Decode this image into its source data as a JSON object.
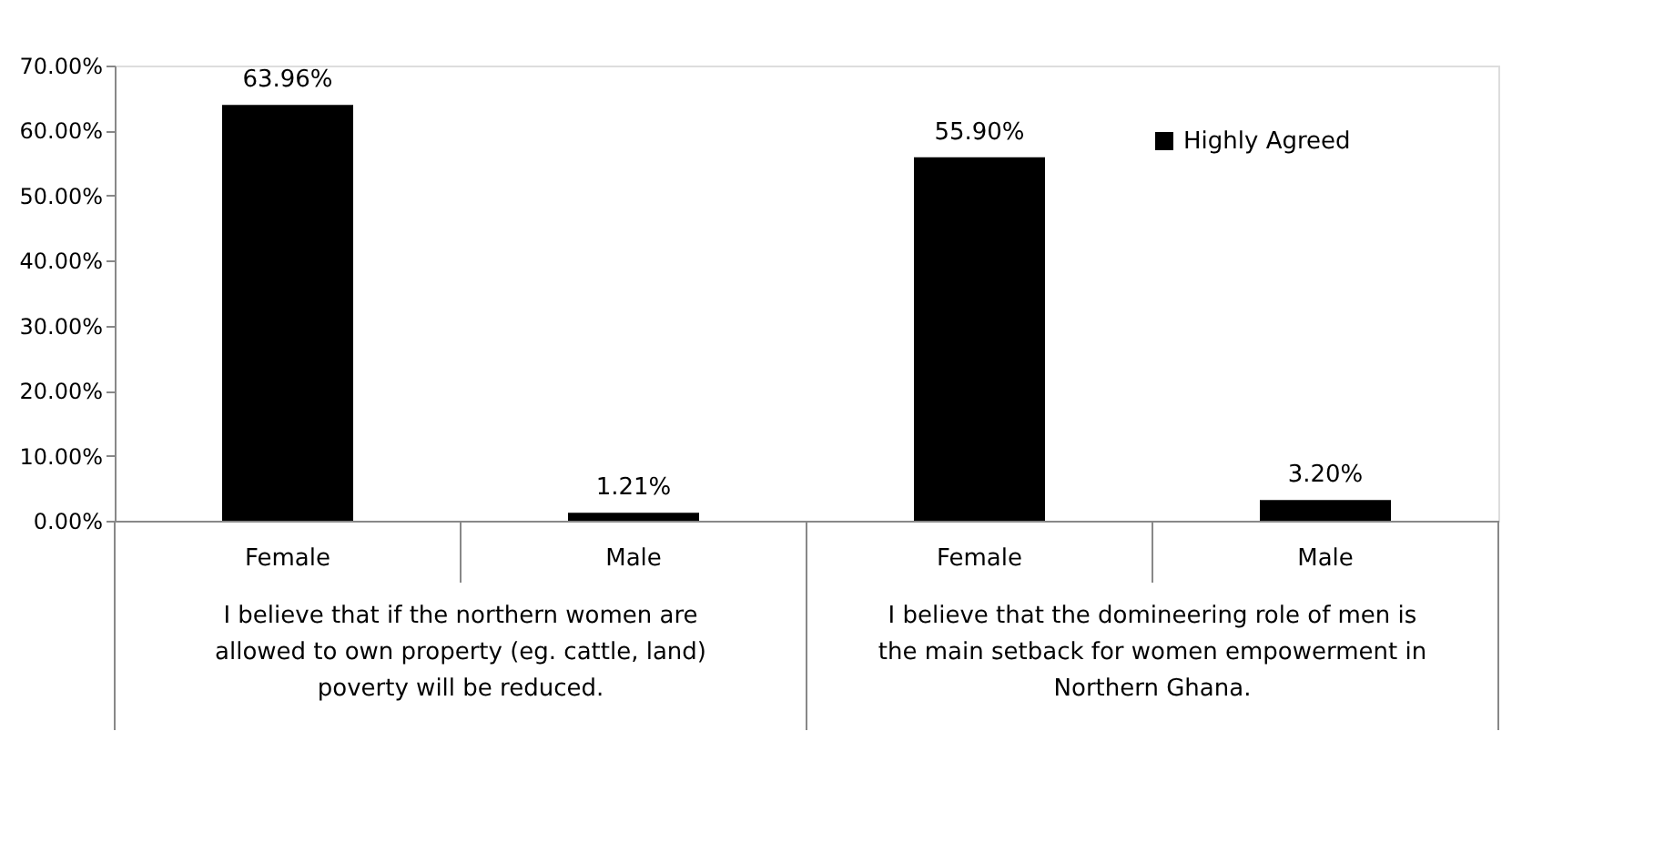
{
  "chart_data": {
    "type": "bar",
    "categories": [
      "Female",
      "Male",
      "Female",
      "Male"
    ],
    "series": [
      {
        "name": "Highly Agreed",
        "color": "#000000",
        "values": [
          63.96,
          1.21,
          55.9,
          3.2
        ],
        "value_labels": [
          "63.96%",
          "1.21%",
          "55.90%",
          "3.20%"
        ]
      }
    ],
    "ylim": [
      0,
      70
    ],
    "yticks": [
      {
        "value": 0,
        "label": "0.00%"
      },
      {
        "value": 10,
        "label": "10.00%"
      },
      {
        "value": 20,
        "label": "20.00%"
      },
      {
        "value": 30,
        "label": "30.00%"
      },
      {
        "value": 40,
        "label": "40.00%"
      },
      {
        "value": 50,
        "label": "50.00%"
      },
      {
        "value": 60,
        "label": "60.00%"
      },
      {
        "value": 70,
        "label": "70.00%"
      }
    ],
    "annotations": [
      "I believe that if the northern women are allowed to own property (eg. cattle, land) poverty will be reduced.",
      "I believe that the domineering role of men is the main setback for women empowerment in Northern Ghana."
    ],
    "grid": false,
    "legend": "top right"
  }
}
